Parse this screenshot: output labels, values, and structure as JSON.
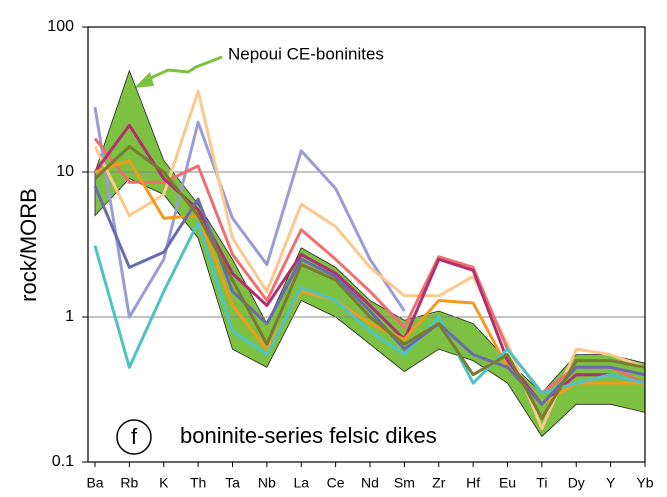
{
  "chart_data": {
    "type": "line",
    "ylabel": "rock/MORB",
    "log_y": true,
    "ylim": [
      0.1,
      100
    ],
    "yticks": [
      0.1,
      1,
      10,
      100
    ],
    "grid": true,
    "annotation": {
      "text": "Nepoui CE-boninites",
      "color": "#7cc142"
    },
    "panel_label": "f",
    "caption": "boninite-series felsic dikes",
    "categories": [
      "Ba",
      "Rb",
      "K",
      "Th",
      "Ta",
      "Nb",
      "La",
      "Ce",
      "Nd",
      "Sm",
      "Zr",
      "Hf",
      "Eu",
      "Ti",
      "Dy",
      "Y",
      "Yb"
    ],
    "envelope": {
      "color": "#7cc142",
      "upper": [
        10,
        50,
        12,
        6,
        2.5,
        0.9,
        3.0,
        2.2,
        1.3,
        0.95,
        1.1,
        0.9,
        0.5,
        0.3,
        0.55,
        0.55,
        0.48
      ],
      "lower": [
        5,
        9,
        7,
        3.5,
        0.6,
        0.45,
        1.3,
        1.0,
        0.65,
        0.42,
        0.6,
        0.5,
        0.35,
        0.15,
        0.25,
        0.25,
        0.22
      ]
    },
    "series": [
      {
        "color": "#9b9bd6",
        "values": [
          28,
          1.0,
          2.5,
          22,
          4.8,
          2.3,
          14,
          7.7,
          2.5,
          1.1,
          null,
          null,
          null,
          null,
          null,
          null,
          null
        ]
      },
      {
        "color": "#fcc88e",
        "values": [
          15,
          5,
          7,
          36,
          3.5,
          1.5,
          6,
          4.2,
          2.2,
          1.4,
          1.4,
          1.9,
          0.65,
          0.17,
          0.6,
          0.55,
          0.45
        ]
      },
      {
        "color": "#ef6f6f",
        "values": [
          17,
          8.5,
          8.5,
          11,
          2.7,
          1.3,
          4,
          2.5,
          1.5,
          0.85,
          2.6,
          2.2,
          0.6,
          0.3,
          0.45,
          0.45,
          0.35
        ]
      },
      {
        "color": "#b03070",
        "values": [
          10,
          21,
          9,
          5.5,
          2,
          1.2,
          2.7,
          2,
          1.2,
          0.7,
          2.5,
          2.1,
          0.5,
          0.25,
          0.4,
          0.4,
          0.35
        ]
      },
      {
        "color": "#f39a1e",
        "values": [
          10,
          12,
          4.8,
          5,
          1.2,
          0.6,
          1.5,
          1.3,
          0.9,
          0.7,
          1.3,
          1.25,
          0.45,
          0.25,
          0.35,
          0.35,
          0.35
        ]
      },
      {
        "color": "#4ec3c3",
        "values": [
          3.1,
          0.45,
          1.5,
          4.5,
          0.8,
          0.55,
          1.6,
          1.3,
          0.8,
          0.55,
          1.0,
          0.35,
          0.6,
          0.3,
          0.35,
          0.4,
          0.35
        ]
      },
      {
        "color": "#6a6ab0",
        "values": [
          8,
          2.2,
          2.8,
          6.5,
          1.5,
          0.9,
          2.5,
          1.9,
          1.1,
          0.6,
          0.9,
          0.55,
          0.45,
          0.25,
          0.45,
          0.45,
          0.4
        ]
      },
      {
        "color": "#7a7a30",
        "values": [
          9,
          15,
          10,
          5,
          1.8,
          0.65,
          2.3,
          1.8,
          1.0,
          0.65,
          0.9,
          0.4,
          0.55,
          0.2,
          0.5,
          0.5,
          0.45
        ]
      }
    ]
  }
}
